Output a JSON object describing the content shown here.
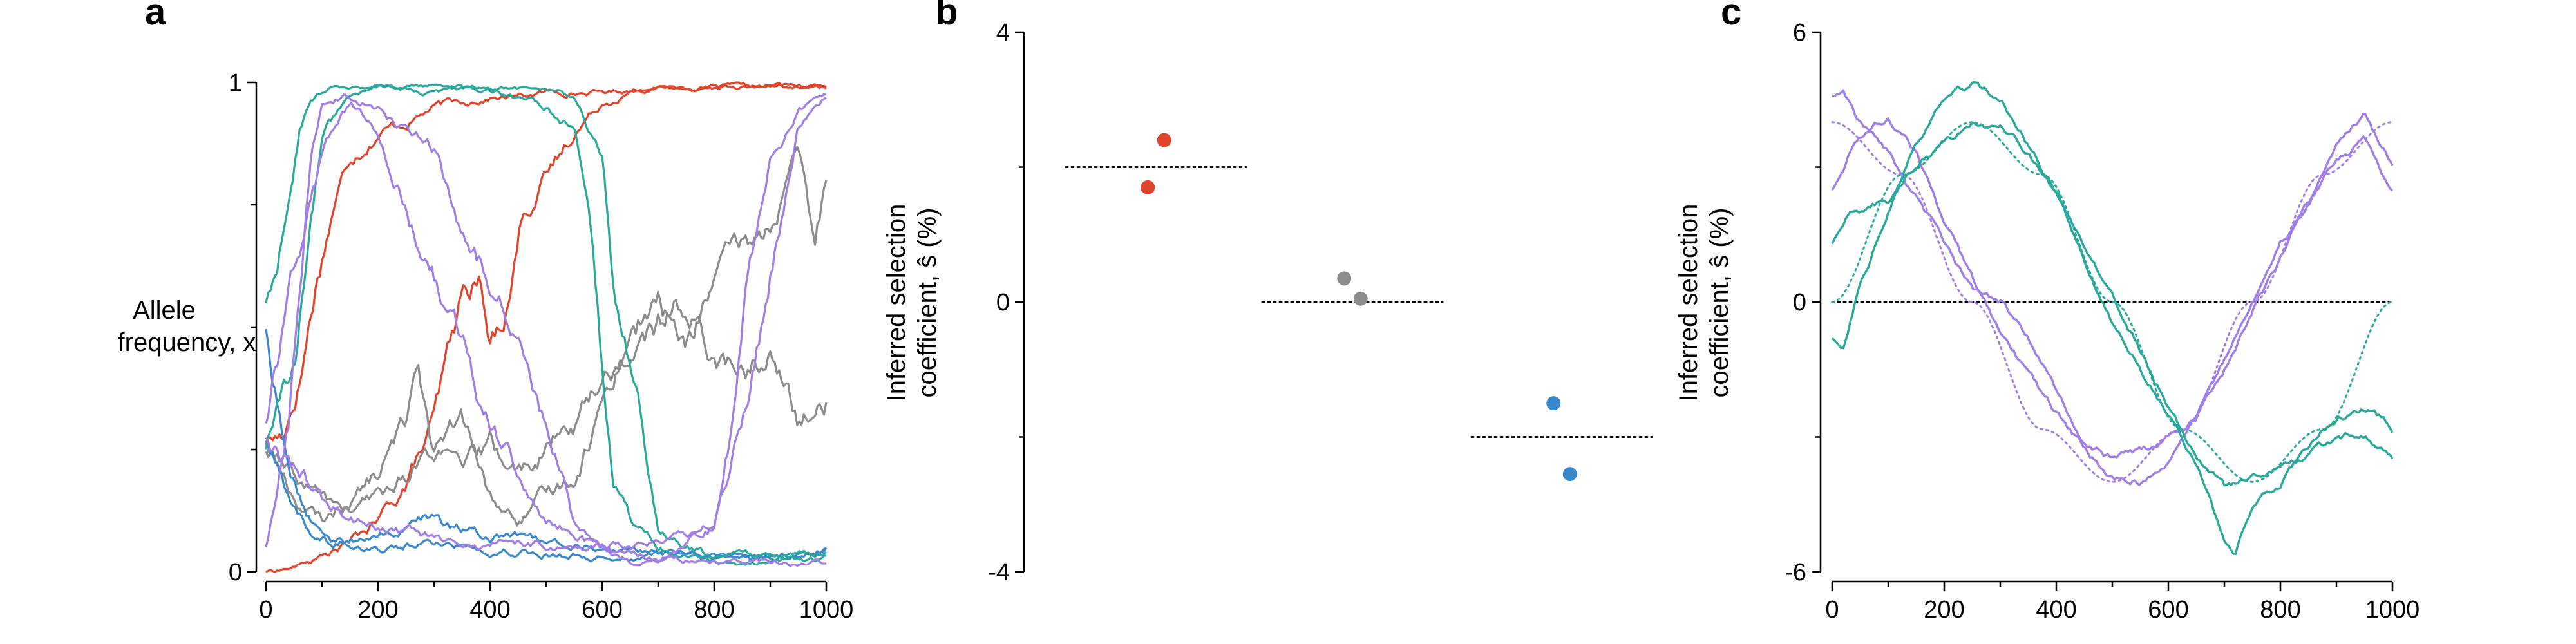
{
  "panels": {
    "a": "a",
    "b": "b",
    "c": "c"
  },
  "colors": {
    "red": "#e0442a",
    "gray": "#8c8c8c",
    "blue": "#3a88cc",
    "teal": "#2aa89b",
    "purple": "#a07ee6"
  },
  "chart_data": [
    {
      "type": "line",
      "panel": "a",
      "ylabel_lines": [
        "Allele",
        "frequency, x"
      ],
      "xlim": [
        0,
        1000
      ],
      "ylim": [
        0,
        1
      ],
      "xticks": [
        "0",
        "200",
        "400",
        "600",
        "800",
        "1000"
      ],
      "yticks": [
        "0",
        "1"
      ],
      "grid": false,
      "series": [
        {
          "color": "red",
          "x": [
            0,
            30,
            60,
            90,
            120,
            150,
            200,
            250,
            300,
            350,
            400,
            450,
            500,
            600,
            700,
            800,
            900,
            1000
          ],
          "y": [
            0.27,
            0.28,
            0.4,
            0.6,
            0.75,
            0.85,
            0.9,
            0.92,
            0.95,
            0.96,
            0.97,
            0.97,
            0.98,
            0.98,
            0.99,
            0.99,
            0.99,
            0.99
          ]
        },
        {
          "color": "red",
          "x": [
            0,
            50,
            100,
            150,
            200,
            250,
            300,
            350,
            380,
            400,
            430,
            460,
            500,
            550,
            600,
            650,
            700,
            750,
            800,
            900,
            1000
          ],
          "y": [
            0.0,
            0.01,
            0.03,
            0.06,
            0.1,
            0.18,
            0.3,
            0.55,
            0.6,
            0.45,
            0.55,
            0.75,
            0.8,
            0.9,
            0.96,
            0.98,
            0.99,
            0.99,
            0.99,
            0.99,
            0.99
          ]
        },
        {
          "color": "gray",
          "x": [
            0,
            50,
            100,
            150,
            200,
            250,
            270,
            300,
            350,
            400,
            450,
            500,
            550,
            600,
            650,
            700,
            750,
            800,
            850,
            900,
            950,
            980,
            1000
          ],
          "y": [
            0.27,
            0.15,
            0.1,
            0.15,
            0.2,
            0.3,
            0.45,
            0.25,
            0.3,
            0.15,
            0.1,
            0.15,
            0.2,
            0.35,
            0.5,
            0.55,
            0.45,
            0.6,
            0.65,
            0.7,
            0.85,
            0.65,
            0.8
          ]
        },
        {
          "color": "gray",
          "x": [
            0,
            50,
            100,
            150,
            200,
            250,
            300,
            350,
            400,
            450,
            500,
            550,
            600,
            650,
            700,
            750,
            800,
            850,
            900,
            950,
            1000
          ],
          "y": [
            0.25,
            0.18,
            0.15,
            0.12,
            0.15,
            0.2,
            0.25,
            0.2,
            0.25,
            0.2,
            0.25,
            0.3,
            0.4,
            0.45,
            0.5,
            0.55,
            0.45,
            0.4,
            0.45,
            0.3,
            0.35
          ]
        },
        {
          "color": "blue",
          "x": [
            0,
            40,
            80,
            120,
            200,
            300,
            400,
            500,
            600,
            700,
            800,
            900,
            1000
          ],
          "y": [
            0.5,
            0.2,
            0.1,
            0.07,
            0.05,
            0.06,
            0.05,
            0.04,
            0.03,
            0.04,
            0.03,
            0.03,
            0.05
          ]
        },
        {
          "color": "blue",
          "x": [
            0,
            40,
            80,
            120,
            200,
            300,
            400,
            500,
            600,
            700,
            800,
            900,
            1000
          ],
          "y": [
            0.27,
            0.15,
            0.08,
            0.06,
            0.07,
            0.1,
            0.07,
            0.06,
            0.05,
            0.04,
            0.03,
            0.03,
            0.04
          ]
        },
        {
          "color": "teal",
          "x": [
            0,
            20,
            40,
            60,
            80,
            120,
            200,
            300,
            400,
            500,
            550,
            600,
            620,
            650,
            700,
            750,
            800,
            900,
            1000
          ],
          "y": [
            0.55,
            0.6,
            0.75,
            0.9,
            0.97,
            0.99,
            0.99,
            0.98,
            0.99,
            0.99,
            0.97,
            0.85,
            0.6,
            0.45,
            0.1,
            0.05,
            0.03,
            0.03,
            0.05
          ]
        },
        {
          "color": "teal",
          "x": [
            0,
            50,
            100,
            150,
            200,
            300,
            400,
            500,
            550,
            580,
            600,
            620,
            650,
            700,
            750,
            800,
            900,
            1000
          ],
          "y": [
            0.25,
            0.4,
            0.9,
            0.97,
            0.99,
            0.99,
            0.98,
            0.95,
            0.9,
            0.7,
            0.4,
            0.2,
            0.1,
            0.05,
            0.03,
            0.02,
            0.02,
            0.03
          ]
        },
        {
          "color": "purple",
          "x": [
            0,
            40,
            60,
            80,
            100,
            140,
            200,
            250,
            300,
            350,
            400,
            450,
            500,
            550,
            600,
            650,
            700,
            800,
            1000
          ],
          "y": [
            0.05,
            0.3,
            0.6,
            0.85,
            0.95,
            0.97,
            0.95,
            0.9,
            0.85,
            0.7,
            0.6,
            0.5,
            0.3,
            0.1,
            0.05,
            0.02,
            0.02,
            0.02,
            0.02
          ]
        },
        {
          "color": "purple",
          "x": [
            0,
            50,
            100,
            150,
            200,
            300,
            400,
            500,
            600,
            700,
            750,
            800,
            830,
            860,
            900,
            950,
            1000
          ],
          "y": [
            0.3,
            0.6,
            0.85,
            0.95,
            0.9,
            0.6,
            0.3,
            0.1,
            0.05,
            0.03,
            0.05,
            0.1,
            0.3,
            0.6,
            0.85,
            0.95,
            0.97
          ]
        },
        {
          "color": "purple",
          "x": [
            0,
            100,
            200,
            300,
            400,
            500,
            600,
            700,
            800,
            850,
            900,
            950,
            1000
          ],
          "y": [
            0.27,
            0.15,
            0.1,
            0.07,
            0.06,
            0.05,
            0.05,
            0.06,
            0.1,
            0.3,
            0.6,
            0.9,
            0.97
          ]
        }
      ]
    },
    {
      "type": "scatter",
      "panel": "b",
      "ylabel_lines": [
        "Inferred selection",
        "coefficient, ŝ (%)"
      ],
      "ylim": [
        -4,
        4
      ],
      "yticks": [
        "4",
        "0",
        "-4"
      ],
      "grid": false,
      "groups": [
        {
          "color": "red",
          "true_value": 2.0,
          "points": [
            {
              "pos": 1.15,
              "y": 2.4
            },
            {
              "pos": 0.85,
              "y": 1.7
            }
          ]
        },
        {
          "color": "gray",
          "true_value": 0.0,
          "points": [
            {
              "pos": 0.85,
              "y": 0.35
            },
            {
              "pos": 1.15,
              "y": 0.05
            }
          ]
        },
        {
          "color": "blue",
          "true_value": -2.0,
          "points": [
            {
              "pos": 0.85,
              "y": -1.5
            },
            {
              "pos": 1.15,
              "y": -2.55
            }
          ]
        }
      ]
    },
    {
      "type": "line",
      "panel": "c",
      "ylabel_lines": [
        "Inferred selection",
        "coefficient, ŝ (%)"
      ],
      "xlim": [
        0,
        1000
      ],
      "ylim": [
        -6,
        6
      ],
      "xticks": [
        "0",
        "200",
        "400",
        "600",
        "800",
        "1000"
      ],
      "yticks": [
        "6",
        "0",
        "-6"
      ],
      "grid": false,
      "zero_line": 0,
      "series": [
        {
          "color": "purple",
          "style": "dotted",
          "x": [
            0,
            125,
            250,
            375,
            500,
            625,
            750,
            875,
            1000
          ],
          "y": [
            4,
            2.83,
            0,
            -2.83,
            -4,
            -2.83,
            0,
            2.83,
            4
          ]
        },
        {
          "color": "teal",
          "style": "dotted",
          "x": [
            0,
            125,
            250,
            375,
            500,
            625,
            750,
            875,
            1000
          ],
          "y": [
            0,
            2.83,
            4,
            2.83,
            0,
            -2.83,
            -4,
            -2.83,
            0
          ]
        },
        {
          "color": "purple",
          "style": "solid",
          "x": [
            0,
            20,
            50,
            100,
            150,
            200,
            250,
            300,
            350,
            400,
            450,
            500,
            550,
            600,
            650,
            700,
            750,
            800,
            850,
            900,
            950,
            1000
          ],
          "y": [
            4.6,
            4.8,
            4.0,
            3.3,
            2.3,
            1.3,
            0.2,
            0,
            -0.8,
            -2.0,
            -3.1,
            -3.5,
            -3.3,
            -3.0,
            -2.6,
            -1.5,
            -0.2,
            1.0,
            2.2,
            3.4,
            4.2,
            3.0
          ]
        },
        {
          "color": "purple",
          "style": "solid",
          "x": [
            0,
            30,
            60,
            100,
            150,
            200,
            250,
            300,
            350,
            400,
            450,
            500,
            550,
            600,
            650,
            700,
            750,
            800,
            850,
            900,
            950,
            1000
          ],
          "y": [
            2.5,
            3.3,
            3.8,
            4.1,
            3.3,
            1.8,
            0.5,
            -0.6,
            -1.6,
            -2.5,
            -3.3,
            -3.9,
            -4.0,
            -3.5,
            -2.5,
            -1.3,
            0,
            1.3,
            2.2,
            3.1,
            3.6,
            2.5
          ]
        },
        {
          "color": "teal",
          "style": "solid",
          "x": [
            0,
            20,
            50,
            100,
            150,
            200,
            250,
            300,
            350,
            400,
            450,
            500,
            550,
            600,
            650,
            700,
            720,
            750,
            800,
            850,
            900,
            950,
            1000
          ],
          "y": [
            -0.8,
            -1.0,
            0.5,
            2.0,
            3.5,
            4.5,
            4.8,
            4.5,
            3.5,
            2.5,
            1.0,
            -0.5,
            -1.5,
            -2.5,
            -3.6,
            -5.3,
            -5.6,
            -4.5,
            -4.0,
            -3.2,
            -2.6,
            -2.3,
            -2.8
          ]
        },
        {
          "color": "teal",
          "style": "solid",
          "x": [
            0,
            30,
            60,
            100,
            150,
            200,
            250,
            300,
            350,
            400,
            450,
            500,
            550,
            600,
            650,
            700,
            750,
            800,
            850,
            900,
            950,
            1000
          ],
          "y": [
            1.3,
            2.0,
            2.1,
            2.3,
            3.0,
            3.6,
            3.9,
            3.9,
            3.3,
            2.4,
            1.3,
            0.2,
            -1.1,
            -2.3,
            -3.4,
            -4.1,
            -3.9,
            -3.6,
            -3.4,
            -3.0,
            -3.0,
            -3.5
          ]
        }
      ]
    }
  ]
}
